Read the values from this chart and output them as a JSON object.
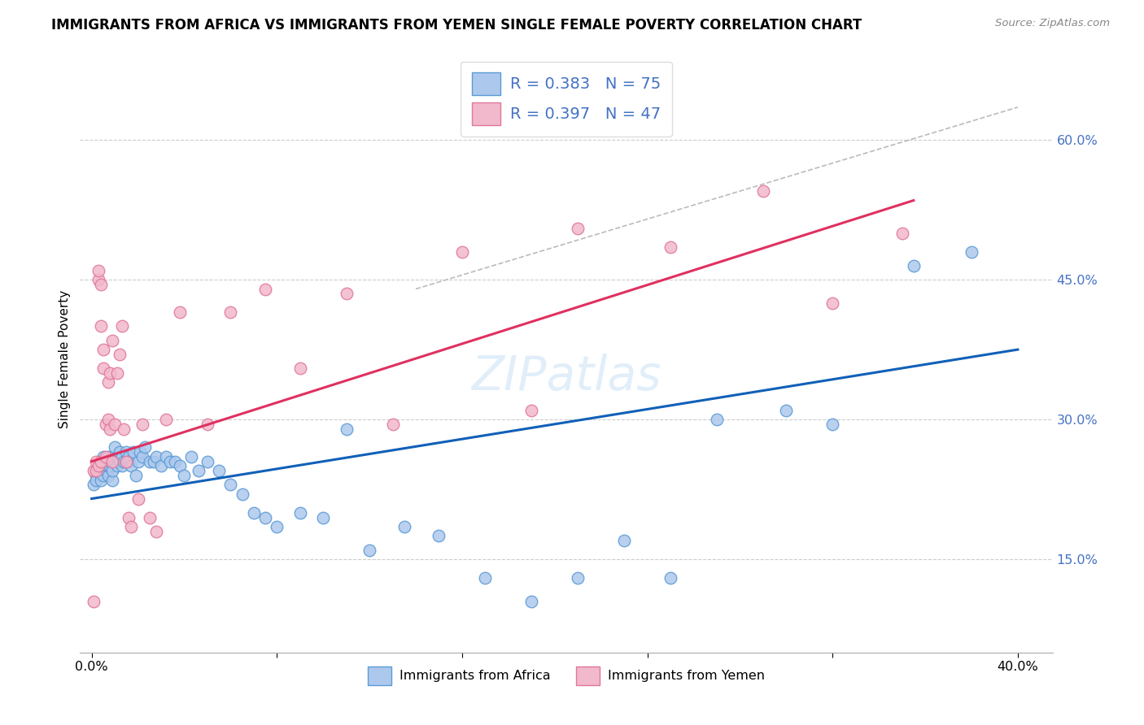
{
  "title": "IMMIGRANTS FROM AFRICA VS IMMIGRANTS FROM YEMEN SINGLE FEMALE POVERTY CORRELATION CHART",
  "source": "Source: ZipAtlas.com",
  "ylabel": "Single Female Poverty",
  "yticks": [
    0.15,
    0.3,
    0.45,
    0.6
  ],
  "ytick_labels": [
    "15.0%",
    "30.0%",
    "45.0%",
    "60.0%"
  ],
  "legend_africa_R": "0.383",
  "legend_africa_N": "75",
  "legend_yemen_R": "0.397",
  "legend_yemen_N": "47",
  "africa_color": "#adc8ed",
  "africa_edge_color": "#5b9bd5",
  "yemen_color": "#f2b8cc",
  "yemen_edge_color": "#e07898",
  "africa_line_color": "#1060b8",
  "yemen_line_color": "#e03060",
  "dashed_line_color": "#bbbbbb",
  "watermark": "ZIPatlas",
  "africa_x": [
    0.001,
    0.002,
    0.002,
    0.003,
    0.003,
    0.004,
    0.004,
    0.004,
    0.005,
    0.005,
    0.005,
    0.006,
    0.006,
    0.006,
    0.007,
    0.007,
    0.007,
    0.008,
    0.008,
    0.009,
    0.009,
    0.01,
    0.01,
    0.011,
    0.011,
    0.012,
    0.012,
    0.013,
    0.013,
    0.014,
    0.015,
    0.015,
    0.016,
    0.016,
    0.017,
    0.018,
    0.019,
    0.02,
    0.021,
    0.022,
    0.023,
    0.025,
    0.027,
    0.028,
    0.03,
    0.032,
    0.034,
    0.036,
    0.038,
    0.04,
    0.043,
    0.046,
    0.05,
    0.055,
    0.06,
    0.065,
    0.07,
    0.075,
    0.08,
    0.09,
    0.1,
    0.11,
    0.12,
    0.135,
    0.15,
    0.17,
    0.19,
    0.21,
    0.23,
    0.25,
    0.27,
    0.3,
    0.32,
    0.355,
    0.38
  ],
  "africa_y": [
    0.23,
    0.24,
    0.235,
    0.245,
    0.25,
    0.24,
    0.255,
    0.235,
    0.24,
    0.255,
    0.26,
    0.245,
    0.25,
    0.255,
    0.24,
    0.25,
    0.26,
    0.25,
    0.255,
    0.235,
    0.245,
    0.255,
    0.27,
    0.25,
    0.26,
    0.255,
    0.265,
    0.25,
    0.26,
    0.255,
    0.255,
    0.265,
    0.26,
    0.255,
    0.25,
    0.265,
    0.24,
    0.255,
    0.265,
    0.26,
    0.27,
    0.255,
    0.255,
    0.26,
    0.25,
    0.26,
    0.255,
    0.255,
    0.25,
    0.24,
    0.26,
    0.245,
    0.255,
    0.245,
    0.23,
    0.22,
    0.2,
    0.195,
    0.185,
    0.2,
    0.195,
    0.29,
    0.16,
    0.185,
    0.175,
    0.13,
    0.105,
    0.13,
    0.17,
    0.13,
    0.3,
    0.31,
    0.295,
    0.465,
    0.48
  ],
  "yemen_x": [
    0.001,
    0.001,
    0.002,
    0.002,
    0.003,
    0.003,
    0.003,
    0.004,
    0.004,
    0.004,
    0.005,
    0.005,
    0.006,
    0.006,
    0.007,
    0.007,
    0.008,
    0.008,
    0.009,
    0.009,
    0.01,
    0.011,
    0.012,
    0.013,
    0.014,
    0.015,
    0.016,
    0.017,
    0.02,
    0.022,
    0.025,
    0.028,
    0.032,
    0.038,
    0.05,
    0.06,
    0.075,
    0.09,
    0.11,
    0.13,
    0.16,
    0.19,
    0.21,
    0.25,
    0.29,
    0.32,
    0.35
  ],
  "yemen_y": [
    0.245,
    0.105,
    0.245,
    0.255,
    0.45,
    0.46,
    0.25,
    0.445,
    0.4,
    0.255,
    0.375,
    0.355,
    0.295,
    0.26,
    0.3,
    0.34,
    0.29,
    0.35,
    0.385,
    0.255,
    0.295,
    0.35,
    0.37,
    0.4,
    0.29,
    0.255,
    0.195,
    0.185,
    0.215,
    0.295,
    0.195,
    0.18,
    0.3,
    0.415,
    0.295,
    0.415,
    0.44,
    0.355,
    0.435,
    0.295,
    0.48,
    0.31,
    0.505,
    0.485,
    0.545,
    0.425,
    0.5
  ],
  "africa_line_x0": 0.0,
  "africa_line_y0": 0.215,
  "africa_line_x1": 0.4,
  "africa_line_y1": 0.375,
  "yemen_line_x0": 0.0,
  "yemen_line_y0": 0.255,
  "yemen_line_x1": 0.355,
  "yemen_line_y1": 0.535,
  "dash_line_x0": 0.14,
  "dash_line_y0": 0.44,
  "dash_line_x1": 0.4,
  "dash_line_y1": 0.635,
  "xlim": [
    -0.005,
    0.415
  ],
  "ylim": [
    0.05,
    0.68
  ],
  "figsize": [
    14.06,
    8.92
  ],
  "dpi": 100
}
